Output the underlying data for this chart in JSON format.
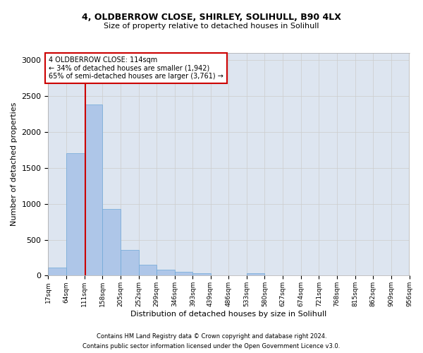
{
  "title1": "4, OLDBERROW CLOSE, SHIRLEY, SOLIHULL, B90 4LX",
  "title2": "Size of property relative to detached houses in Solihull",
  "xlabel": "Distribution of detached houses by size in Solihull",
  "ylabel": "Number of detached properties",
  "footnote1": "Contains HM Land Registry data © Crown copyright and database right 2024.",
  "footnote2": "Contains public sector information licensed under the Open Government Licence v3.0.",
  "annotation_line1": "4 OLDBERROW CLOSE: 114sqm",
  "annotation_line2": "← 34% of detached houses are smaller (1,942)",
  "annotation_line3": "65% of semi-detached houses are larger (3,761) →",
  "property_size_sqm": 114,
  "bin_edges": [
    17,
    64,
    111,
    158,
    205,
    252,
    299,
    346,
    393,
    439,
    486,
    533,
    580,
    627,
    674,
    721,
    768,
    815,
    862,
    909,
    956
  ],
  "bar_heights": [
    110,
    1700,
    2380,
    930,
    360,
    150,
    80,
    55,
    35,
    0,
    0,
    30,
    0,
    0,
    0,
    0,
    0,
    0,
    0,
    0
  ],
  "bar_color": "#aec6e8",
  "bar_edge_color": "#6ea8d8",
  "red_line_color": "#cc0000",
  "annotation_box_color": "#cc0000",
  "grid_color": "#cccccc",
  "background_color": "#dde5f0",
  "ylim": [
    0,
    3100
  ],
  "yticks": [
    0,
    500,
    1000,
    1500,
    2000,
    2500,
    3000
  ]
}
